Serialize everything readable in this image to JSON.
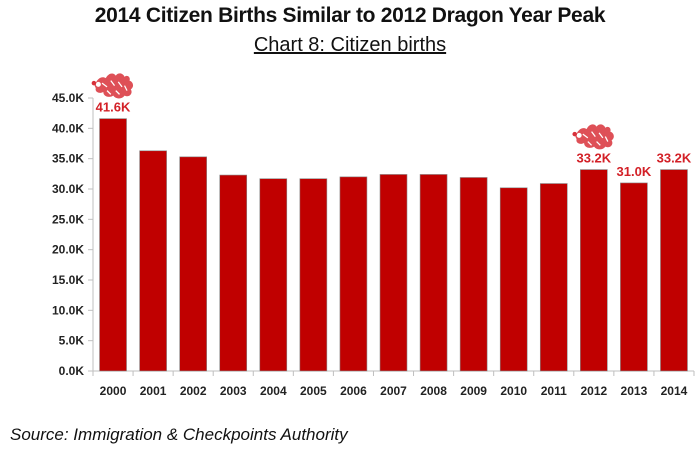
{
  "chart_data": {
    "type": "bar",
    "title": "2014 Citizen Births Similar to 2012 Dragon Year Peak",
    "subtitle": "Chart 8: Citizen births",
    "xlabel": "",
    "ylabel": "",
    "categories": [
      "2000",
      "2001",
      "2002",
      "2003",
      "2004",
      "2005",
      "2006",
      "2007",
      "2008",
      "2009",
      "2010",
      "2011",
      "2012",
      "2013",
      "2014"
    ],
    "values": [
      41.6,
      36.3,
      35.3,
      32.3,
      31.7,
      31.7,
      32.0,
      32.4,
      32.4,
      31.9,
      30.2,
      30.9,
      33.2,
      31.0,
      33.2
    ],
    "units": "K",
    "ylim": [
      0,
      45
    ],
    "yticks": [
      0,
      5,
      10,
      15,
      20,
      25,
      30,
      35,
      40,
      45
    ],
    "ytick_labels": [
      "0.0K",
      "5.0K",
      "10.0K",
      "15.0K",
      "20.0K",
      "25.0K",
      "30.0K",
      "35.0K",
      "40.0K",
      "45.0K"
    ],
    "data_labels": [
      {
        "category": "2000",
        "text": "41.6K"
      },
      {
        "category": "2012",
        "text": "33.2K"
      },
      {
        "category": "2013",
        "text": "31.0K"
      },
      {
        "category": "2014",
        "text": "33.2K"
      }
    ],
    "annotations": [
      {
        "category": "2000",
        "icon": "dragon-icon"
      },
      {
        "category": "2012",
        "icon": "dragon-icon"
      }
    ],
    "grid": false,
    "legend": "none",
    "bar_color": "#c00000",
    "label_color": "#d32027"
  },
  "source": "Source:  Immigration & Checkpoints Authority"
}
